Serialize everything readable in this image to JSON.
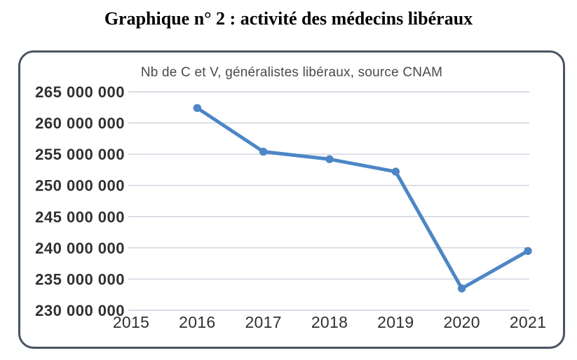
{
  "page": {
    "title": "Graphique n° 2 : activité des médecins libéraux"
  },
  "chart_data": {
    "type": "line",
    "title": "Nb de C et V, généralistes libéraux, source CNAM",
    "categories": [
      "2015",
      "2016",
      "2017",
      "2018",
      "2019",
      "2020",
      "2021"
    ],
    "series": [
      {
        "name": "Nb de C et V, généralistes libéraux",
        "x": [
          2016,
          2017,
          2018,
          2019,
          2020,
          2021
        ],
        "values": [
          262400000,
          255400000,
          254200000,
          252200000,
          233500000,
          239500000
        ]
      }
    ],
    "xlabel": "",
    "ylabel": "",
    "xlim": [
      2015,
      2021
    ],
    "ylim": [
      230000000,
      265000000
    ],
    "ytick_step": 5000000,
    "ytick_labels": [
      "265 000 000",
      "260 000 000",
      "255 000 000",
      "250 000 000",
      "245 000 000",
      "240 000 000",
      "235 000 000",
      "230 000 000"
    ],
    "grid": true,
    "legend": false,
    "line_color": "#4D86C6",
    "grid_color": "#CBD1DC",
    "axis_label_color": "#303030",
    "panel_border_color": "#4A5461"
  }
}
